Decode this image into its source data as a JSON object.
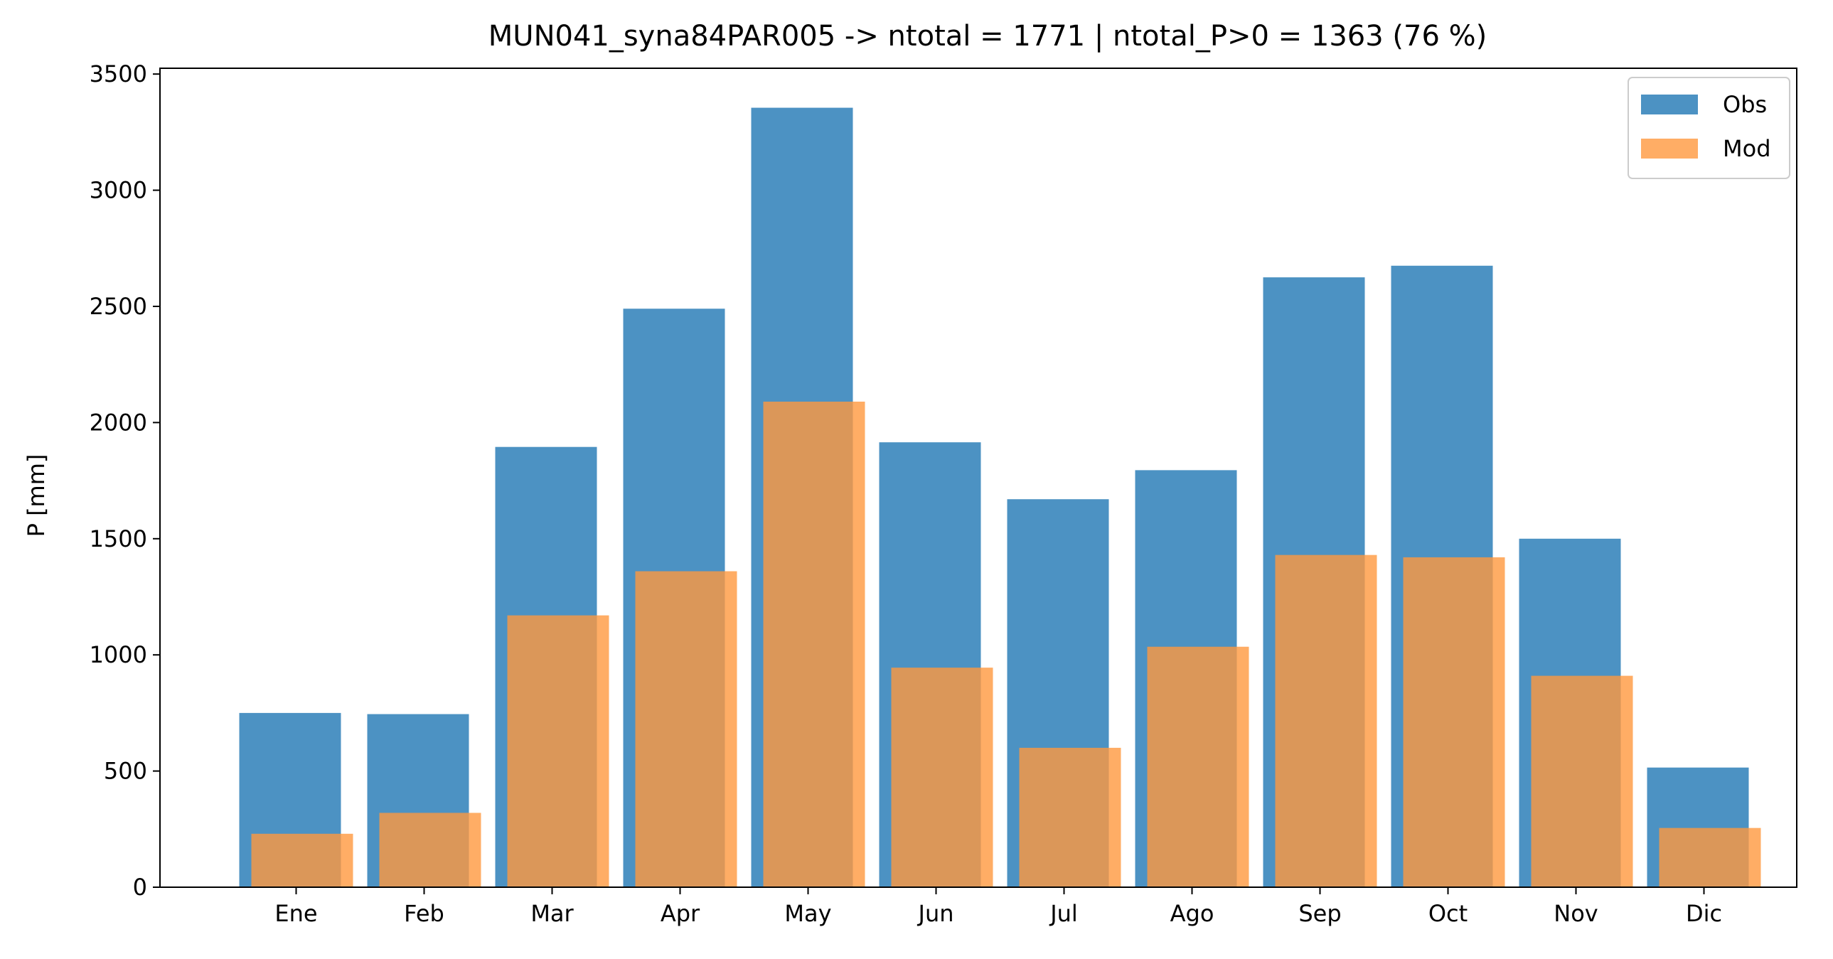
{
  "chart_data": {
    "type": "bar",
    "title": "MUN041_syna84PAR005 -> ntotal = 1771 | ntotal_P>0 = 1363 (76 %)",
    "xlabel": "",
    "ylabel": "P [mm]",
    "categories": [
      "Ene",
      "Feb",
      "Mar",
      "Apr",
      "May",
      "Jun",
      "Jul",
      "Ago",
      "Sep",
      "Oct",
      "Nov",
      "Dic"
    ],
    "series": [
      {
        "name": "Obs",
        "color": "#4c92c3",
        "values": [
          750,
          745,
          1895,
          2490,
          3355,
          1915,
          1670,
          1795,
          2625,
          2675,
          1500,
          515
        ]
      },
      {
        "name": "Mod",
        "color": "#ff993e",
        "opacity": 0.8,
        "values": [
          230,
          320,
          1170,
          1360,
          2090,
          945,
          600,
          1035,
          1430,
          1420,
          910,
          255
        ]
      }
    ],
    "ylim": [
      0,
      3525
    ],
    "yticks": [
      "0",
      "500",
      "1000",
      "1500",
      "2000",
      "2500",
      "3000",
      "3500"
    ],
    "grid": false,
    "legend_position": "top-right"
  }
}
